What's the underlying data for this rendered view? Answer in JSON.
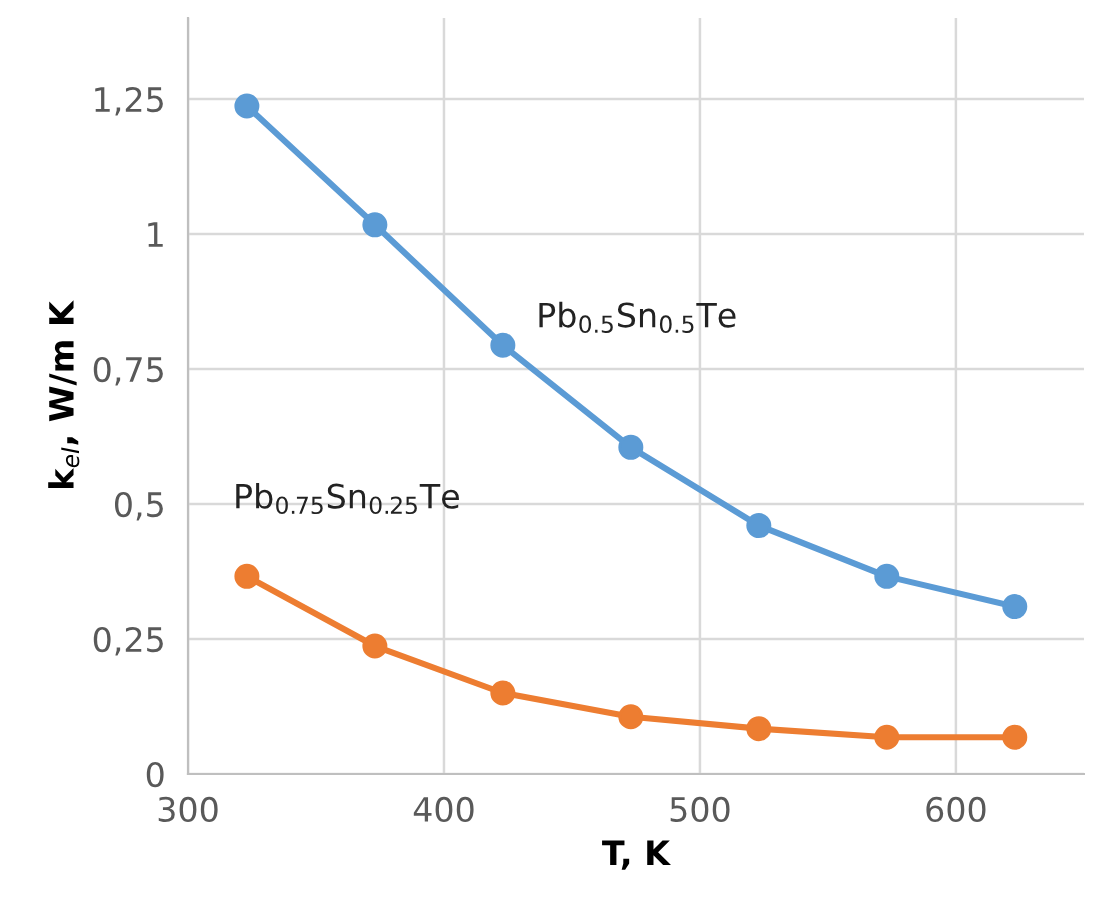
{
  "chart_data": {
    "type": "line",
    "xlabel": "T, K",
    "ylabel": "k$_{el}$, W/m K",
    "x": [
      323,
      373,
      423,
      473,
      523,
      573,
      623
    ],
    "series": [
      {
        "name": "Pb$_{0.5}$Sn$_{0.5}$Te",
        "color": "#5b9bd5",
        "values": [
          1.237,
          1.017,
          0.794,
          0.605,
          0.46,
          0.366,
          0.31
        ]
      },
      {
        "name": "Pb$_{0.75}$Sn$_{0.25}$Te",
        "color": "#ed7d31",
        "values": [
          0.366,
          0.237,
          0.15,
          0.106,
          0.084,
          0.068,
          0.068
        ]
      }
    ],
    "xlim": [
      300,
      650
    ],
    "xticks": [
      300,
      400,
      500,
      600
    ],
    "ylim": [
      0,
      1.4
    ],
    "yticks": [
      0,
      {
        "value": 0.25,
        "label": "0,25"
      },
      {
        "value": 0.5,
        "label": "0,5"
      },
      {
        "value": 0.75,
        "label": "0,75"
      },
      1,
      {
        "value": 1.25,
        "label": "1,25"
      }
    ],
    "grid": true,
    "marker": "circle",
    "line_style": "solid",
    "legend": false
  }
}
